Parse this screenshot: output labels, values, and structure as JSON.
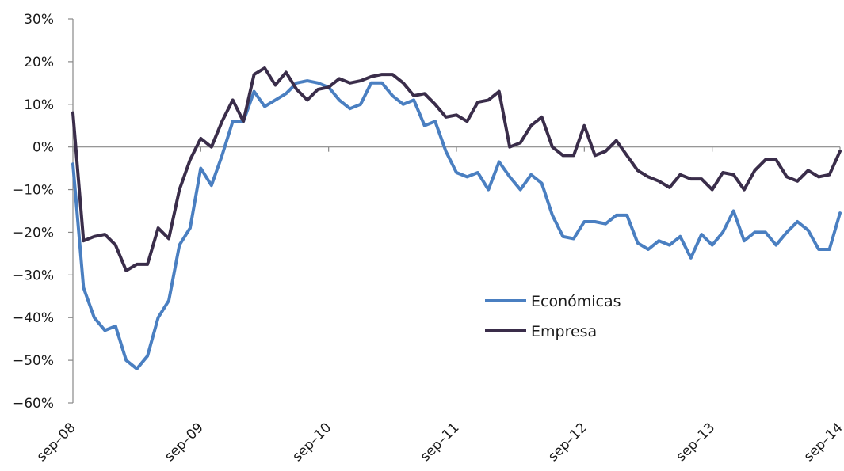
{
  "chart_data": {
    "type": "line",
    "title": "",
    "xlabel": "",
    "ylabel": "",
    "ylim": [
      -60,
      30
    ],
    "y_ticks": [
      30,
      20,
      10,
      0,
      -10,
      -20,
      -30,
      -40,
      -50,
      -60
    ],
    "y_tick_labels": [
      "30%",
      "20%",
      "10%",
      "0%",
      "−10%",
      "−20%",
      "−30%",
      "−40%",
      "−50%",
      "−60%"
    ],
    "x_range": [
      0,
      72
    ],
    "x_tick_positions": [
      0,
      12,
      24,
      36,
      48,
      60,
      72
    ],
    "x_tick_labels": [
      "sep–08",
      "sep–09",
      "sep–10",
      "sep–11",
      "sep–12",
      "sep–13",
      "sep–14"
    ],
    "grid": false,
    "legend_position": "center-right",
    "series": [
      {
        "name": "Económicas",
        "color": "#4a7fc1",
        "values": [
          -4,
          -33,
          -40,
          -43,
          -42,
          -50,
          -52,
          -49,
          -40,
          -36,
          -23,
          -19,
          -5,
          -9,
          -2,
          6,
          6,
          13,
          9.5,
          11,
          12.5,
          15,
          15.5,
          15,
          14,
          11,
          9,
          10,
          15,
          15,
          12,
          10,
          11,
          5,
          6,
          -1,
          -6,
          -7,
          -6,
          -10,
          -3.5,
          -7,
          -10,
          -6.5,
          -8.5,
          -16,
          -21,
          -21.5,
          -17.5,
          -17.5,
          -18,
          -16,
          -16,
          -22.5,
          -24,
          -22,
          -23,
          -21,
          -26,
          -20.5,
          -23,
          -20,
          -15,
          -22,
          -20,
          -20,
          -23,
          -20,
          -17.5,
          -19.5,
          -24,
          -24,
          -15.5
        ]
      },
      {
        "name": "Empresa",
        "color": "#3a2d4a",
        "values": [
          8,
          -22,
          -21,
          -20.5,
          -23,
          -29,
          -27.5,
          -27.5,
          -19,
          -21.5,
          -10,
          -3,
          2,
          0,
          6,
          11,
          6,
          17,
          18.5,
          14.5,
          17.5,
          13.5,
          11,
          13.5,
          14,
          16,
          15,
          15.5,
          16.5,
          17,
          17,
          15,
          12,
          12.5,
          10,
          7,
          7.5,
          6,
          10.5,
          11,
          13,
          0,
          1,
          5,
          7,
          0,
          -2,
          -2,
          5,
          -2,
          -1,
          1.5,
          -2,
          -5.5,
          -7,
          -8,
          -9.5,
          -6.5,
          -7.5,
          -7.5,
          -10,
          -6,
          -6.5,
          -10,
          -5.5,
          -3,
          -3,
          -7,
          -8,
          -5.5,
          -7,
          -6.5,
          -1
        ]
      }
    ]
  }
}
